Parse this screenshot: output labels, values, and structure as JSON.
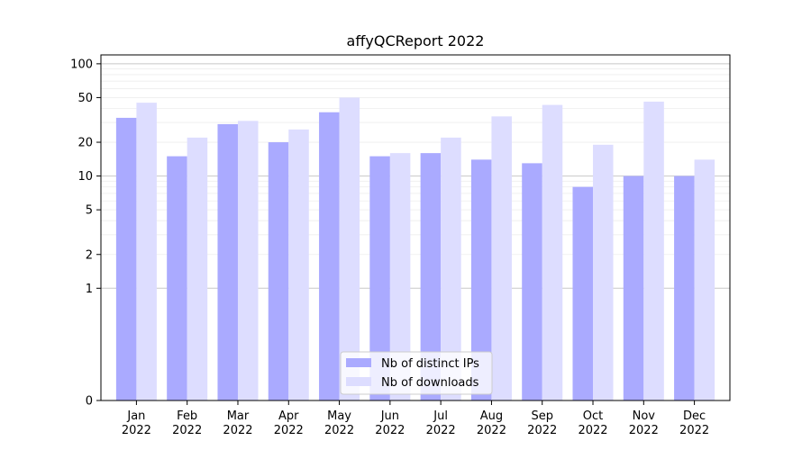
{
  "chart_data": {
    "type": "bar",
    "title": "affyQCReport 2022",
    "xlabel": "",
    "ylabel": "",
    "scale": "symlog",
    "ylim": [
      0,
      120
    ],
    "yticks": [
      0,
      1,
      2,
      5,
      10,
      20,
      50,
      100
    ],
    "ytick_labels": [
      "0",
      "1",
      "2",
      "5",
      "10",
      "20",
      "50",
      "100"
    ],
    "categories": [
      "Jan\n2022",
      "Feb\n2022",
      "Mar\n2022",
      "Apr\n2022",
      "May\n2022",
      "Jun\n2022",
      "Jul\n2022",
      "Aug\n2022",
      "Sep\n2022",
      "Oct\n2022",
      "Nov\n2022",
      "Dec\n2022"
    ],
    "category_months": [
      "Jan",
      "Feb",
      "Mar",
      "Apr",
      "May",
      "Jun",
      "Jul",
      "Aug",
      "Sep",
      "Oct",
      "Nov",
      "Dec"
    ],
    "category_years": [
      "2022",
      "2022",
      "2022",
      "2022",
      "2022",
      "2022",
      "2022",
      "2022",
      "2022",
      "2022",
      "2022",
      "2022"
    ],
    "series": [
      {
        "name": "Nb of distinct IPs",
        "color": "#aaaaff",
        "values": [
          33,
          15,
          29,
          20,
          37,
          15,
          16,
          14,
          13,
          8,
          10,
          10
        ]
      },
      {
        "name": "Nb of downloads",
        "color": "#ddddff",
        "values": [
          45,
          22,
          31,
          26,
          50,
          16,
          22,
          34,
          43,
          19,
          46,
          14
        ]
      }
    ],
    "grid": true,
    "legend_position": "lower-center"
  }
}
